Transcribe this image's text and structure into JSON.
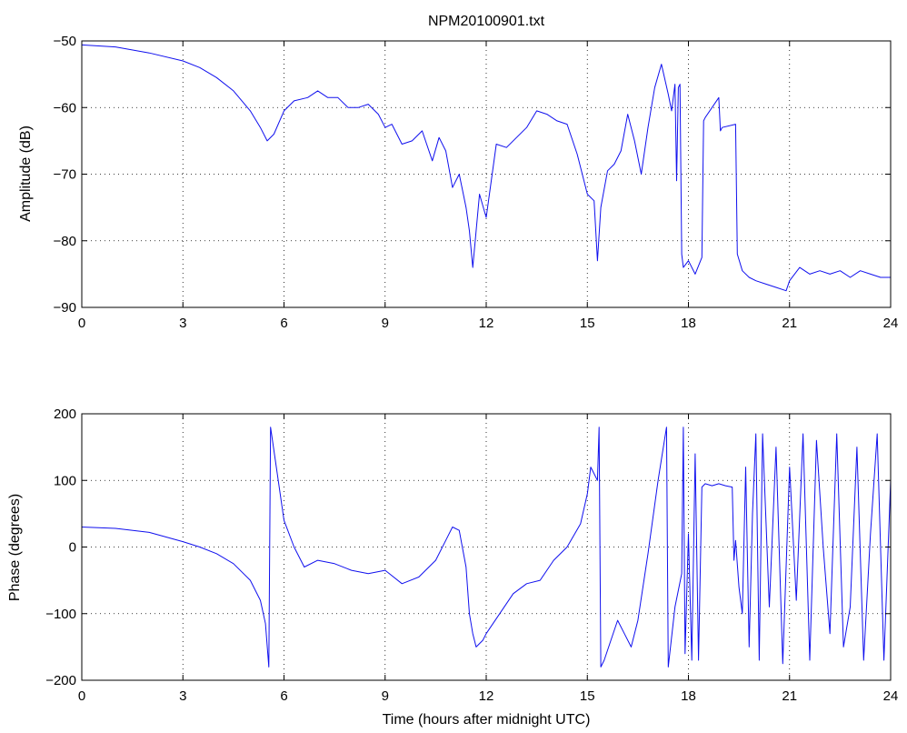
{
  "chart_data": [
    {
      "type": "line",
      "title": "NPM20100901.txt",
      "xlabel": "",
      "ylabel": "Amplitude (dB)",
      "xlim": [
        0,
        24
      ],
      "ylim": [
        -90,
        -50
      ],
      "x_ticks": [
        0,
        3,
        6,
        9,
        12,
        15,
        18,
        21,
        24
      ],
      "y_ticks": [
        -50,
        -60,
        -70,
        -80,
        -90
      ],
      "grid": true,
      "color": "#1010ee",
      "x": [
        0,
        1,
        2,
        3,
        3.5,
        4,
        4.5,
        5,
        5.3,
        5.5,
        5.7,
        6,
        6.3,
        6.7,
        7,
        7.3,
        7.6,
        7.9,
        8.2,
        8.5,
        8.8,
        9.0,
        9.2,
        9.5,
        9.8,
        10.1,
        10.4,
        10.6,
        10.8,
        11.0,
        11.2,
        11.4,
        11.5,
        11.6,
        11.8,
        12.0,
        12.3,
        12.6,
        12.9,
        13.2,
        13.5,
        13.8,
        14.1,
        14.4,
        14.7,
        15.0,
        15.2,
        15.3,
        15.4,
        15.6,
        15.8,
        16.0,
        16.2,
        16.4,
        16.6,
        16.8,
        17.0,
        17.2,
        17.4,
        17.5,
        17.6,
        17.65,
        17.7,
        17.75,
        17.8,
        17.85,
        18.0,
        18.2,
        18.4,
        18.45,
        18.5,
        18.9,
        18.95,
        19.0,
        19.4,
        19.45,
        19.6,
        19.8,
        20.0,
        20.3,
        20.6,
        20.9,
        21.0,
        21.3,
        21.6,
        21.9,
        22.2,
        22.5,
        22.8,
        23.1,
        23.4,
        23.7,
        24.0
      ],
      "y": [
        -50.6,
        -50.9,
        -51.8,
        -53.0,
        -54.0,
        -55.5,
        -57.5,
        -60.5,
        -63.0,
        -65.0,
        -64.0,
        -60.5,
        -59.0,
        -58.5,
        -57.5,
        -58.5,
        -58.5,
        -60.0,
        -60.0,
        -59.5,
        -61.0,
        -63.0,
        -62.5,
        -65.5,
        -65.0,
        -63.5,
        -68.0,
        -64.5,
        -66.5,
        -72.0,
        -70.0,
        -75.0,
        -78.5,
        -84.0,
        -73.0,
        -76.5,
        -65.5,
        -66.0,
        -64.5,
        -63.0,
        -60.5,
        -61.0,
        -62.0,
        -62.5,
        -67.0,
        -73.0,
        -74.0,
        -83.0,
        -75.0,
        -69.5,
        -68.5,
        -66.5,
        -61.0,
        -65.0,
        -70.0,
        -63.0,
        -57.0,
        -53.5,
        -58.0,
        -60.5,
        -56.5,
        -71.0,
        -57.0,
        -56.5,
        -82.0,
        -84.0,
        -83.0,
        -85.0,
        -82.5,
        -62.0,
        -61.5,
        -58.5,
        -63.5,
        -63.0,
        -62.5,
        -82.0,
        -84.5,
        -85.5,
        -86.0,
        -86.5,
        -87.0,
        -87.5,
        -86.0,
        -84.0,
        -85.0,
        -84.5,
        -85.0,
        -84.5,
        -85.5,
        -84.5,
        -85.0,
        -85.5,
        -85.5
      ]
    },
    {
      "type": "line",
      "title": "",
      "xlabel": "Time (hours after midnight UTC)",
      "ylabel": "Phase (degrees)",
      "xlim": [
        0,
        24
      ],
      "ylim": [
        -200,
        200
      ],
      "x_ticks": [
        0,
        3,
        6,
        9,
        12,
        15,
        18,
        21,
        24
      ],
      "y_ticks": [
        200,
        100,
        0,
        -100,
        -200
      ],
      "grid": true,
      "color": "#1010ee",
      "x": [
        0,
        1,
        2,
        3,
        3.5,
        4,
        4.5,
        5,
        5.3,
        5.45,
        5.55,
        5.6,
        5.8,
        6.0,
        6.3,
        6.6,
        7.0,
        7.5,
        8.0,
        8.5,
        9.0,
        9.5,
        10.0,
        10.5,
        10.8,
        11.0,
        11.2,
        11.4,
        11.5,
        11.6,
        11.7,
        11.9,
        12.0,
        12.4,
        12.8,
        13.2,
        13.6,
        14.0,
        14.4,
        14.8,
        15.0,
        15.1,
        15.2,
        15.3,
        15.35,
        15.4,
        15.5,
        15.7,
        15.9,
        16.1,
        16.3,
        16.5,
        16.8,
        17.1,
        17.35,
        17.4,
        17.6,
        17.8,
        17.85,
        17.9,
        18.0,
        18.1,
        18.2,
        18.3,
        18.4,
        18.5,
        18.7,
        18.9,
        19.1,
        19.3,
        19.35,
        19.4,
        19.5,
        19.6,
        19.7,
        19.8,
        19.9,
        20.0,
        20.1,
        20.2,
        20.4,
        20.6,
        20.8,
        21.0,
        21.2,
        21.4,
        21.6,
        21.8,
        22.0,
        22.2,
        22.4,
        22.6,
        22.8,
        23.0,
        23.2,
        23.4,
        23.6,
        23.8,
        24.0
      ],
      "y": [
        30,
        28,
        22,
        8,
        0,
        -10,
        -25,
        -50,
        -80,
        -115,
        -180,
        180,
        110,
        40,
        0,
        -30,
        -20,
        -25,
        -35,
        -40,
        -35,
        -55,
        -45,
        -20,
        10,
        30,
        25,
        -30,
        -100,
        -130,
        -150,
        -140,
        -130,
        -100,
        -70,
        -55,
        -50,
        -20,
        0,
        35,
        80,
        120,
        110,
        100,
        180,
        -180,
        -170,
        -140,
        -110,
        -130,
        -150,
        -110,
        -10,
        100,
        180,
        -180,
        -90,
        -40,
        180,
        -160,
        20,
        -170,
        140,
        -170,
        90,
        95,
        92,
        95,
        92,
        90,
        -20,
        10,
        -60,
        -100,
        120,
        -150,
        50,
        170,
        -170,
        170,
        -90,
        150,
        -175,
        120,
        -80,
        170,
        -170,
        160,
        0,
        -130,
        170,
        -150,
        -90,
        150,
        -170,
        20,
        170,
        -170,
        100
      ]
    }
  ]
}
